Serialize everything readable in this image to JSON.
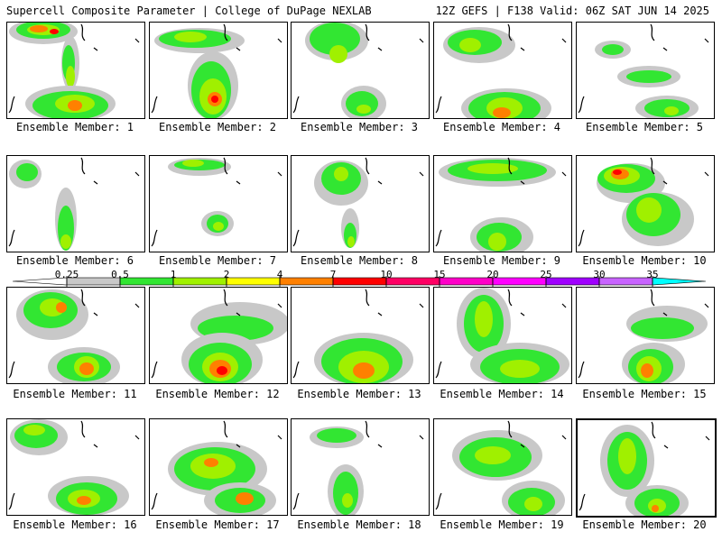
{
  "header": {
    "left": "Supercell Composite Parameter | College of DuPage NEXLAB",
    "right": "12Z GEFS | F138 Valid: 06Z SAT JUN 14 2025"
  },
  "caption_prefix": "Ensemble Member: ",
  "members": [
    {
      "label": "Ensemble Member: 1"
    },
    {
      "label": "Ensemble Member: 2"
    },
    {
      "label": "Ensemble Member: 3"
    },
    {
      "label": "Ensemble Member: 4"
    },
    {
      "label": "Ensemble Member: 5"
    },
    {
      "label": "Ensemble Member: 6"
    },
    {
      "label": "Ensemble Member: 7"
    },
    {
      "label": "Ensemble Member: 8"
    },
    {
      "label": "Ensemble Member: 9"
    },
    {
      "label": "Ensemble Member: 10"
    },
    {
      "label": "Ensemble Member: 11"
    },
    {
      "label": "Ensemble Member: 12"
    },
    {
      "label": "Ensemble Member: 13"
    },
    {
      "label": "Ensemble Member: 14"
    },
    {
      "label": "Ensemble Member: 15"
    },
    {
      "label": "Ensemble Member: 16"
    },
    {
      "label": "Ensemble Member: 17"
    },
    {
      "label": "Ensemble Member: 18"
    },
    {
      "label": "Ensemble Member: 19"
    },
    {
      "label": "Ensemble Member: 20",
      "selected": true
    }
  ],
  "colorbar": {
    "thresholds": [
      "0.25",
      "0.5",
      "1",
      "2",
      "4",
      "7",
      "10",
      "15",
      "20",
      "25",
      "30",
      "35"
    ],
    "colors": [
      "#c8c8c8",
      "#32e632",
      "#a0f000",
      "#ffff00",
      "#ff8000",
      "#ff0000",
      "#ff0064",
      "#ff00c8",
      "#ff00ff",
      "#a000ff",
      "#c864ff",
      "#00ffff"
    ]
  },
  "shading_colors": {
    "gray": "#c8c8c8",
    "green": "#32e632",
    "lime": "#a0f000",
    "yellow": "#ffff00",
    "orange": "#ff8000",
    "red": "#ff0000"
  }
}
